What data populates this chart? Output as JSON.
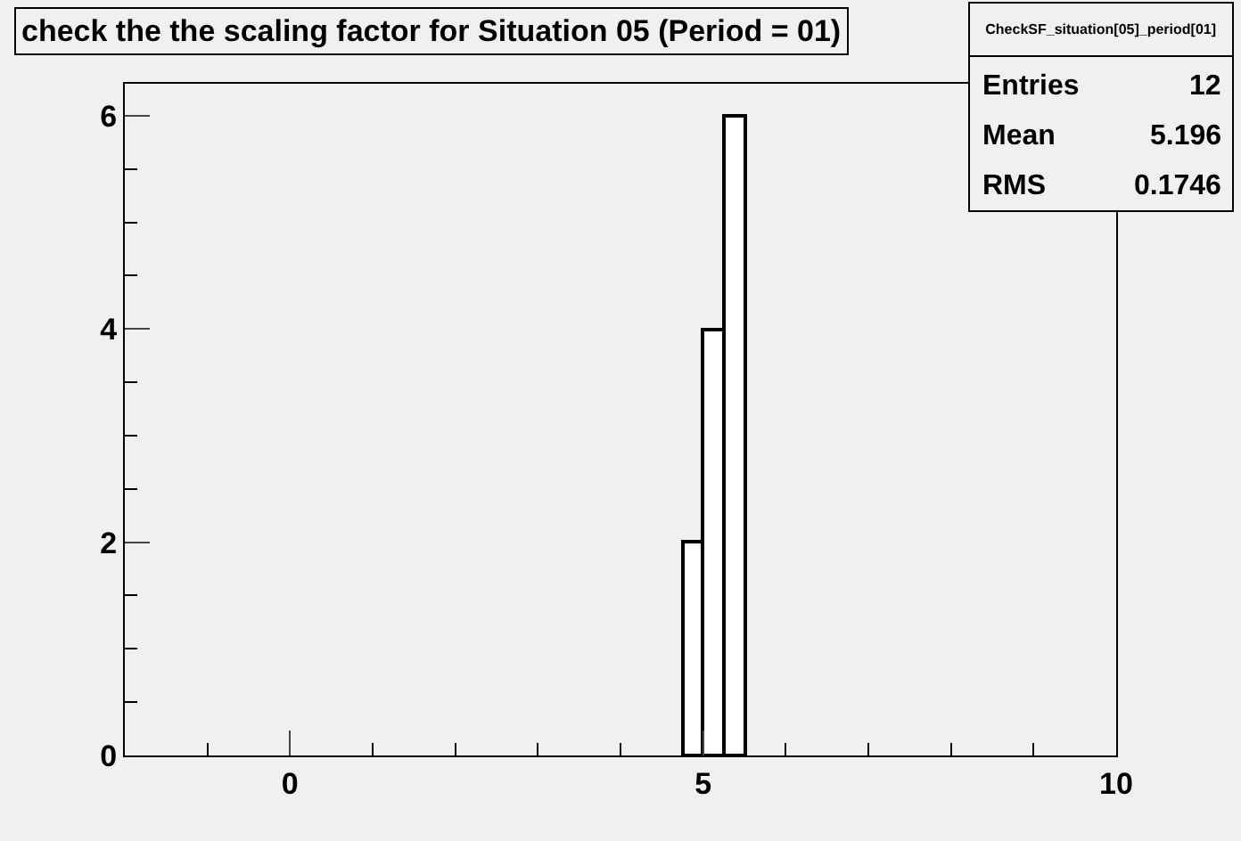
{
  "chart_data": {
    "type": "histogram",
    "title": "check the the scaling factor for Situation 05 (Period = 01)",
    "bins": [
      4.75,
      5.0,
      5.25,
      5.5
    ],
    "values": [
      2,
      4,
      6
    ],
    "color": "#ffffff",
    "xlim": [
      -2,
      10
    ],
    "xticks": [
      0,
      5,
      10
    ],
    "ylim": [
      0,
      6.3
    ],
    "yticks": [
      0,
      2,
      4,
      6
    ],
    "annotations": [
      "CheckSF_situation[05]_period[01]",
      "Entries",
      "12",
      "Mean",
      "5.196",
      "RMS",
      "0.1746"
    ]
  }
}
